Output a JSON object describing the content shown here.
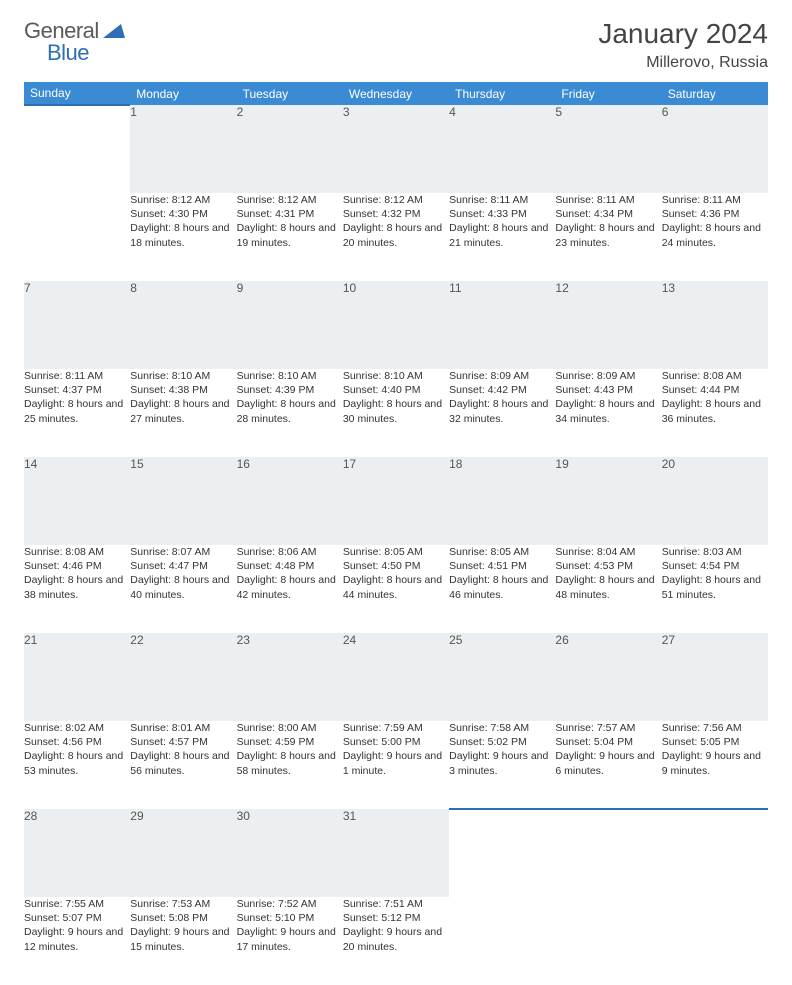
{
  "brand": {
    "name_a": "General",
    "name_b": "Blue"
  },
  "title": "January 2024",
  "location": "Millerovo, Russia",
  "colors": {
    "header_bg": "#3b8bd4",
    "header_text": "#ffffff",
    "daynum_bg": "#eceff1",
    "border": "#2d6fb5",
    "text": "#333333"
  },
  "days": [
    "Sunday",
    "Monday",
    "Tuesday",
    "Wednesday",
    "Thursday",
    "Friday",
    "Saturday"
  ],
  "weeks": [
    {
      "nums": [
        "",
        "1",
        "2",
        "3",
        "4",
        "5",
        "6"
      ],
      "cells": [
        null,
        {
          "sr": "Sunrise: 8:12 AM",
          "ss": "Sunset: 4:30 PM",
          "dl": "Daylight: 8 hours and 18 minutes."
        },
        {
          "sr": "Sunrise: 8:12 AM",
          "ss": "Sunset: 4:31 PM",
          "dl": "Daylight: 8 hours and 19 minutes."
        },
        {
          "sr": "Sunrise: 8:12 AM",
          "ss": "Sunset: 4:32 PM",
          "dl": "Daylight: 8 hours and 20 minutes."
        },
        {
          "sr": "Sunrise: 8:11 AM",
          "ss": "Sunset: 4:33 PM",
          "dl": "Daylight: 8 hours and 21 minutes."
        },
        {
          "sr": "Sunrise: 8:11 AM",
          "ss": "Sunset: 4:34 PM",
          "dl": "Daylight: 8 hours and 23 minutes."
        },
        {
          "sr": "Sunrise: 8:11 AM",
          "ss": "Sunset: 4:36 PM",
          "dl": "Daylight: 8 hours and 24 minutes."
        }
      ]
    },
    {
      "nums": [
        "7",
        "8",
        "9",
        "10",
        "11",
        "12",
        "13"
      ],
      "cells": [
        {
          "sr": "Sunrise: 8:11 AM",
          "ss": "Sunset: 4:37 PM",
          "dl": "Daylight: 8 hours and 25 minutes."
        },
        {
          "sr": "Sunrise: 8:10 AM",
          "ss": "Sunset: 4:38 PM",
          "dl": "Daylight: 8 hours and 27 minutes."
        },
        {
          "sr": "Sunrise: 8:10 AM",
          "ss": "Sunset: 4:39 PM",
          "dl": "Daylight: 8 hours and 28 minutes."
        },
        {
          "sr": "Sunrise: 8:10 AM",
          "ss": "Sunset: 4:40 PM",
          "dl": "Daylight: 8 hours and 30 minutes."
        },
        {
          "sr": "Sunrise: 8:09 AM",
          "ss": "Sunset: 4:42 PM",
          "dl": "Daylight: 8 hours and 32 minutes."
        },
        {
          "sr": "Sunrise: 8:09 AM",
          "ss": "Sunset: 4:43 PM",
          "dl": "Daylight: 8 hours and 34 minutes."
        },
        {
          "sr": "Sunrise: 8:08 AM",
          "ss": "Sunset: 4:44 PM",
          "dl": "Daylight: 8 hours and 36 minutes."
        }
      ]
    },
    {
      "nums": [
        "14",
        "15",
        "16",
        "17",
        "18",
        "19",
        "20"
      ],
      "cells": [
        {
          "sr": "Sunrise: 8:08 AM",
          "ss": "Sunset: 4:46 PM",
          "dl": "Daylight: 8 hours and 38 minutes."
        },
        {
          "sr": "Sunrise: 8:07 AM",
          "ss": "Sunset: 4:47 PM",
          "dl": "Daylight: 8 hours and 40 minutes."
        },
        {
          "sr": "Sunrise: 8:06 AM",
          "ss": "Sunset: 4:48 PM",
          "dl": "Daylight: 8 hours and 42 minutes."
        },
        {
          "sr": "Sunrise: 8:05 AM",
          "ss": "Sunset: 4:50 PM",
          "dl": "Daylight: 8 hours and 44 minutes."
        },
        {
          "sr": "Sunrise: 8:05 AM",
          "ss": "Sunset: 4:51 PM",
          "dl": "Daylight: 8 hours and 46 minutes."
        },
        {
          "sr": "Sunrise: 8:04 AM",
          "ss": "Sunset: 4:53 PM",
          "dl": "Daylight: 8 hours and 48 minutes."
        },
        {
          "sr": "Sunrise: 8:03 AM",
          "ss": "Sunset: 4:54 PM",
          "dl": "Daylight: 8 hours and 51 minutes."
        }
      ]
    },
    {
      "nums": [
        "21",
        "22",
        "23",
        "24",
        "25",
        "26",
        "27"
      ],
      "cells": [
        {
          "sr": "Sunrise: 8:02 AM",
          "ss": "Sunset: 4:56 PM",
          "dl": "Daylight: 8 hours and 53 minutes."
        },
        {
          "sr": "Sunrise: 8:01 AM",
          "ss": "Sunset: 4:57 PM",
          "dl": "Daylight: 8 hours and 56 minutes."
        },
        {
          "sr": "Sunrise: 8:00 AM",
          "ss": "Sunset: 4:59 PM",
          "dl": "Daylight: 8 hours and 58 minutes."
        },
        {
          "sr": "Sunrise: 7:59 AM",
          "ss": "Sunset: 5:00 PM",
          "dl": "Daylight: 9 hours and 1 minute."
        },
        {
          "sr": "Sunrise: 7:58 AM",
          "ss": "Sunset: 5:02 PM",
          "dl": "Daylight: 9 hours and 3 minutes."
        },
        {
          "sr": "Sunrise: 7:57 AM",
          "ss": "Sunset: 5:04 PM",
          "dl": "Daylight: 9 hours and 6 minutes."
        },
        {
          "sr": "Sunrise: 7:56 AM",
          "ss": "Sunset: 5:05 PM",
          "dl": "Daylight: 9 hours and 9 minutes."
        }
      ]
    },
    {
      "nums": [
        "28",
        "29",
        "30",
        "31",
        "",
        "",
        ""
      ],
      "cells": [
        {
          "sr": "Sunrise: 7:55 AM",
          "ss": "Sunset: 5:07 PM",
          "dl": "Daylight: 9 hours and 12 minutes."
        },
        {
          "sr": "Sunrise: 7:53 AM",
          "ss": "Sunset: 5:08 PM",
          "dl": "Daylight: 9 hours and 15 minutes."
        },
        {
          "sr": "Sunrise: 7:52 AM",
          "ss": "Sunset: 5:10 PM",
          "dl": "Daylight: 9 hours and 17 minutes."
        },
        {
          "sr": "Sunrise: 7:51 AM",
          "ss": "Sunset: 5:12 PM",
          "dl": "Daylight: 9 hours and 20 minutes."
        },
        null,
        null,
        null
      ]
    }
  ]
}
